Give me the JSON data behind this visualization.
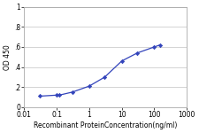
{
  "x": [
    0.03,
    0.1,
    0.12,
    0.3,
    1,
    3,
    10,
    30,
    100,
    150
  ],
  "y": [
    0.11,
    0.12,
    0.12,
    0.15,
    0.21,
    0.3,
    0.46,
    0.54,
    0.6,
    0.62
  ],
  "line_color": "#3344BB",
  "marker_color": "#3344BB",
  "marker": "D",
  "marker_size": 2.2,
  "line_width": 0.9,
  "xlabel": "Recombinant ProteinConcentration(ng/ml)",
  "ylabel": "OD 450",
  "xlim": [
    0.01,
    1000
  ],
  "ylim": [
    0,
    1
  ],
  "yticks": [
    0,
    0.2,
    0.4,
    0.6,
    0.8,
    1.0
  ],
  "ytick_labels": [
    "0",
    ".2",
    ".4",
    ".6",
    ".8",
    "1"
  ],
  "xticks": [
    0.01,
    0.1,
    1,
    10,
    100,
    1000
  ],
  "xtick_labels": [
    "0.01",
    "0.1",
    "1",
    "10",
    "100",
    "1000"
  ],
  "label_fontsize": 5.5,
  "tick_fontsize": 5.5,
  "plot_bg": "#ffffff",
  "fig_bg": "#ffffff",
  "grid_color": "#cccccc",
  "spine_color": "#aaaaaa"
}
